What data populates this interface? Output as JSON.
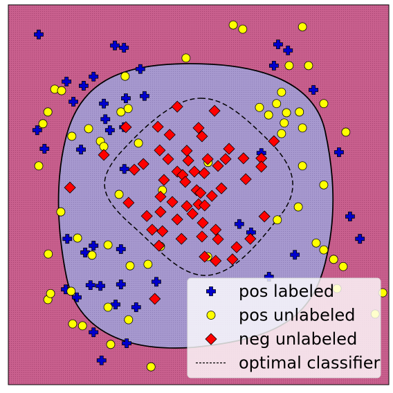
{
  "chart_data": {
    "type": "scatter",
    "xlim": [
      0,
      100
    ],
    "ylim": [
      0,
      100
    ],
    "legend": "lower right",
    "series": [
      {
        "name": "pos labeled",
        "color": "#0000cc",
        "marker": "plus",
        "x": [
          8.0,
          28.0,
          30.4,
          34.7,
          22.4,
          15.3,
          19.8,
          17.1,
          25.1,
          70.9,
          73.5,
          69.8,
          80.2,
          7.6,
          9.5,
          19.1,
          26.7,
          30.4,
          35.8,
          25.5,
          30.9,
          86.9,
          89.8,
          92.4,
          15.5,
          22.4,
          29.6,
          20.2,
          28.2,
          21.6,
          24.2,
          29.6,
          15.1,
          18.0,
          22.4,
          24.5,
          31.1,
          33.6,
          38.9,
          60.7,
          63.8,
          66.5,
          68.5,
          75.3,
          30.5
        ],
        "y": [
          92.2,
          89.3,
          88.7,
          83.1,
          81.1,
          79.8,
          78.7,
          74.5,
          74.0,
          89.6,
          88.0,
          84.0,
          77.6,
          67.0,
          62.1,
          61.9,
          67.0,
          67.8,
          76.0,
          69.9,
          75.4,
          61.2,
          44.3,
          38.4,
          38.4,
          36.6,
          35.7,
          34.8,
          21.1,
          26.2,
          26.0,
          26.4,
          25.1,
          23.0,
          13.8,
          6.4,
          10.9,
          20.4,
          27.1,
          42.3,
          40.1,
          61.0,
          28.4,
          34.2,
          56.8
        ]
      },
      {
        "name": "pos unlabeled",
        "color": "#ffff00",
        "marker": "circle",
        "x": [
          59.1,
          61.6,
          77.3,
          46.7,
          73.8,
          78.9,
          30.7,
          12.2,
          14.0,
          71.8,
          82.9,
          88.7,
          66.0,
          68.4,
          70.5,
          73.1,
          76.5,
          72.5,
          77.3,
          71.8,
          10.4,
          9.1,
          16.7,
          21.1,
          24.2,
          25.1,
          29.6,
          31.5,
          34.2,
          52.5,
          77.3,
          82.9,
          76.2,
          70.7,
          29.1,
          40.5,
          8.0,
          13.8,
          26.2,
          22.0,
          18.2,
          32.0,
          36.7,
          40.0,
          52.4,
          80.9,
          82.9,
          85.5,
          88.0,
          10.4,
          11.1,
          16.5,
          26.2,
          31.6,
          16.9,
          19.5,
          26.9,
          37.5,
          98.4,
          96.4,
          86.4,
          10.5
        ],
        "y": [
          94.7,
          93.6,
          94.2,
          86.0,
          84.0,
          84.0,
          81.2,
          77.8,
          77.4,
          77.0,
          74.0,
          66.5,
          73.0,
          71.0,
          74.0,
          71.6,
          71.8,
          68.9,
          67.6,
          66.1,
          71.8,
          68.7,
          65.4,
          67.4,
          64.1,
          62.7,
          71.8,
          72.7,
          63.6,
          58.5,
          57.6,
          52.6,
          46.8,
          43.4,
          50.1,
          51.2,
          57.6,
          45.5,
          36.8,
          34.1,
          38.6,
          31.3,
          31.7,
          36.4,
          33.7,
          37.3,
          35.5,
          33.0,
          31.1,
          22.4,
          24.0,
          24.6,
          20.4,
          17.1,
          16.0,
          15.5,
          10.6,
          4.7,
          24.2,
          18.6,
          25.3,
          34.4
        ]
      },
      {
        "name": "neg unlabeled",
        "color": "#ff0000",
        "marker": "diamond",
        "x": [
          44.4,
          54.2,
          30.9,
          39.3,
          50.0,
          50.9,
          42.4,
          25.1,
          39.8,
          46.9,
          35.5,
          33.1,
          42.0,
          44.4,
          47.3,
          52.4,
          57.1,
          58.0,
          61.8,
          66.5,
          66.5,
          69.8,
          16.2,
          40.9,
          45.8,
          46.5,
          48.9,
          51.5,
          55.1,
          62.4,
          56.0,
          53.5,
          49.5,
          40.0,
          43.1,
          50.0,
          51.6,
          46.9,
          31.6,
          36.4,
          40.0,
          44.4,
          48.4,
          51.1,
          54.5,
          37.8,
          40.5,
          45.5,
          50.9,
          55.1,
          60.0,
          63.6,
          67.3,
          39.6,
          51.6,
          54.5,
          58.9,
          38.5,
          50.5
        ],
        "y": [
          73.2,
          72.1,
          67.8,
          67.9,
          67.6,
          65.4,
          65.8,
          60.5,
          61.7,
          61.6,
          58.1,
          56.6,
          59.4,
          56.1,
          59.0,
          59.4,
          59.4,
          62.1,
          59.6,
          59.6,
          57.4,
          64.1,
          51.9,
          53.9,
          55.2,
          53.4,
          56.1,
          55.7,
          57.6,
          54.1,
          51.7,
          49.7,
          51.2,
          49.5,
          48.1,
          47.5,
          47.2,
          47.0,
          47.9,
          44.4,
          45.5,
          43.5,
          45.0,
          42.6,
          40.8,
          40.8,
          40.4,
          38.4,
          39.0,
          38.3,
          36.2,
          38.4,
          44.3,
          36.6,
          33.7,
          32.6,
          33.0,
          22.6,
          50.5
        ]
      }
    ],
    "lines": [
      {
        "name": "optimal classifier",
        "color": "#000000",
        "style": "dashed"
      }
    ]
  }
}
